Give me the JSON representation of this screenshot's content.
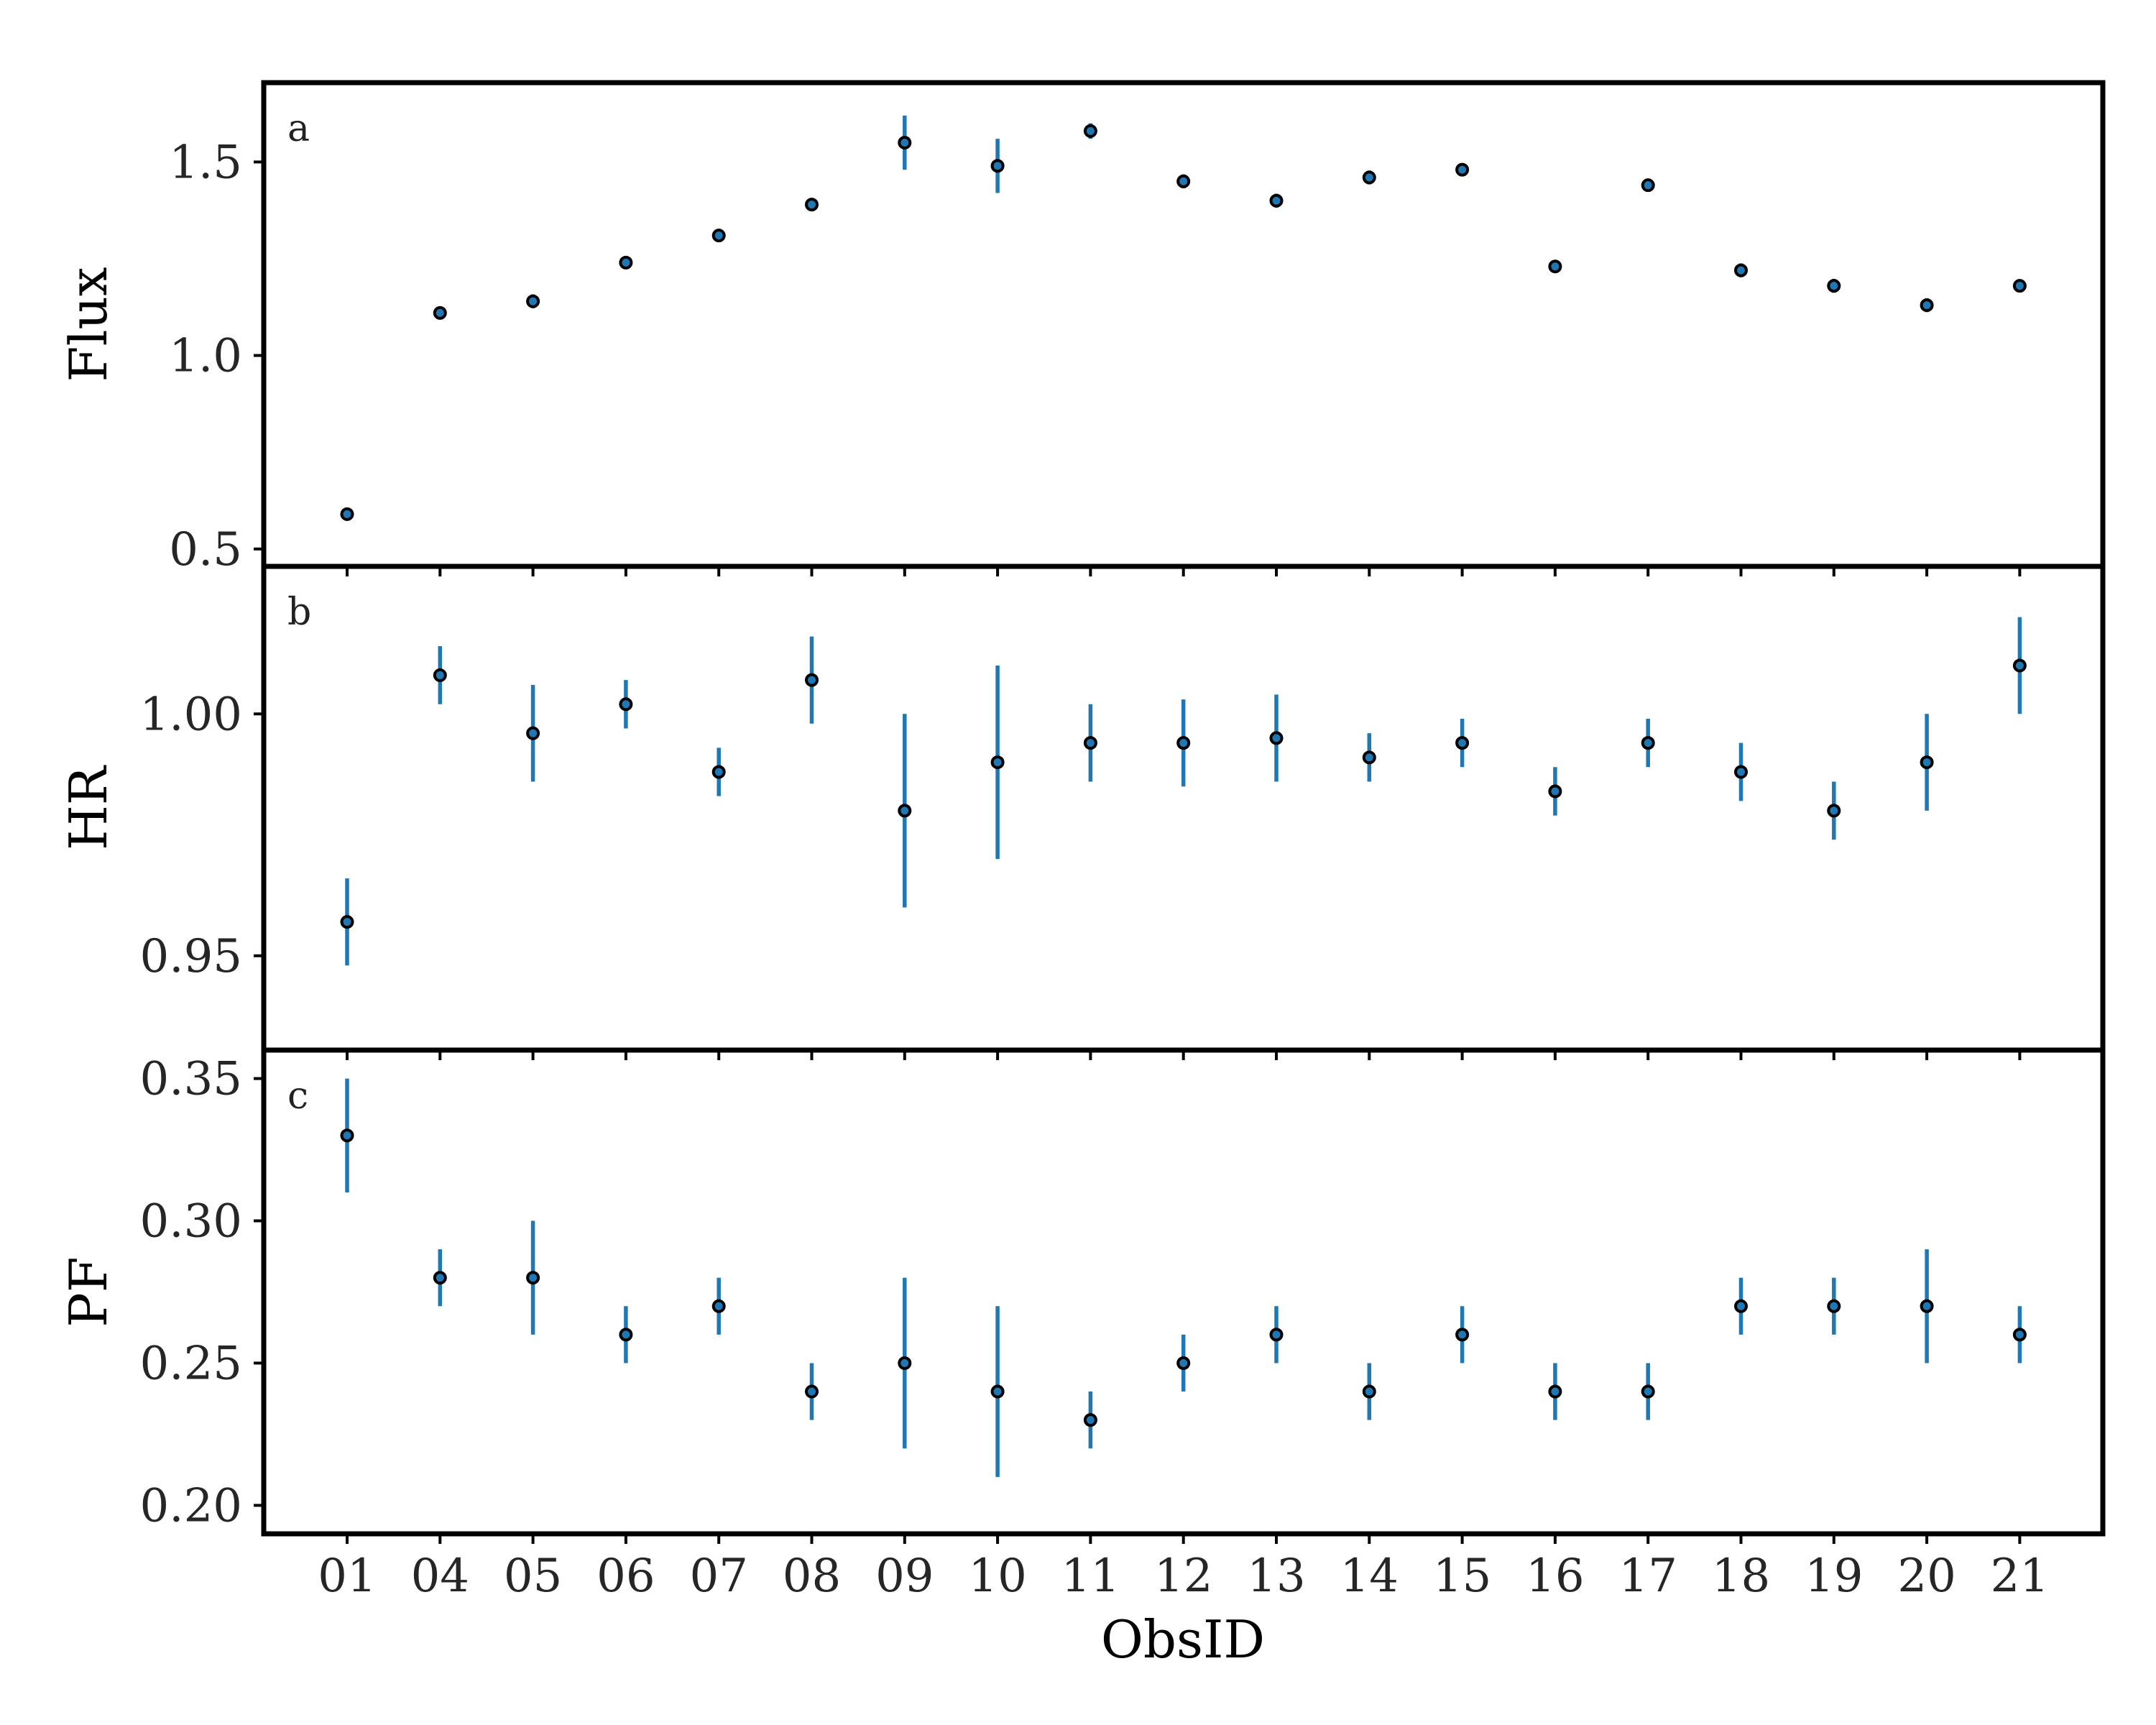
{
  "chart_data": {
    "type": "scatter",
    "xlabel": "ObsID",
    "categories": [
      "01",
      "04",
      "05",
      "06",
      "07",
      "08",
      "09",
      "10",
      "11",
      "12",
      "13",
      "14",
      "15",
      "16",
      "17",
      "18",
      "19",
      "20",
      "21"
    ],
    "colors": {
      "errorbar": "#1f77b4",
      "marker_fill": "#1f77b4",
      "marker_edge": "#000000"
    },
    "panels": [
      {
        "label": "a",
        "ylabel": "Flux",
        "ylim": [
          0.455,
          1.705
        ],
        "yticks": [
          0.5,
          1.0,
          1.5
        ],
        "ytick_labels": [
          "0.5",
          "1.0",
          "1.5"
        ],
        "values": [
          0.59,
          1.11,
          1.14,
          1.24,
          1.31,
          1.39,
          1.55,
          1.49,
          1.58,
          1.45,
          1.4,
          1.46,
          1.48,
          1.23,
          1.44,
          1.22,
          1.18,
          1.13,
          1.18
        ],
        "errors": [
          0.008,
          0.015,
          0.018,
          0.008,
          0.008,
          0.008,
          0.07,
          0.07,
          0.02,
          0.018,
          0.018,
          0.018,
          0.008,
          0.008,
          0.008,
          0.018,
          0.018,
          0.018,
          0.008
        ]
      },
      {
        "label": "b",
        "ylabel": "HR",
        "ylim": [
          0.9305,
          1.0305
        ],
        "yticks": [
          0.95,
          1.0
        ],
        "ytick_labels": [
          "0.95",
          "1.00"
        ],
        "values": [
          0.957,
          1.008,
          0.996,
          1.002,
          0.988,
          1.007,
          0.98,
          0.99,
          0.994,
          0.994,
          0.995,
          0.991,
          0.994,
          0.984,
          0.994,
          0.988,
          0.98,
          0.99,
          1.01
        ],
        "errors": [
          0.009,
          0.006,
          0.01,
          0.005,
          0.005,
          0.009,
          0.02,
          0.02,
          0.008,
          0.009,
          0.009,
          0.005,
          0.005,
          0.005,
          0.005,
          0.006,
          0.006,
          0.01,
          0.01
        ]
      },
      {
        "label": "c",
        "ylabel": "PF",
        "ylim": [
          0.19,
          0.36
        ],
        "yticks": [
          0.2,
          0.25,
          0.3,
          0.35
        ],
        "ytick_labels": [
          "0.20",
          "0.25",
          "0.30",
          "0.35"
        ],
        "values": [
          0.33,
          0.28,
          0.28,
          0.26,
          0.27,
          0.24,
          0.25,
          0.24,
          0.23,
          0.25,
          0.26,
          0.24,
          0.26,
          0.24,
          0.24,
          0.27,
          0.27,
          0.27,
          0.26
        ],
        "errors": [
          0.02,
          0.01,
          0.02,
          0.01,
          0.01,
          0.01,
          0.03,
          0.03,
          0.01,
          0.01,
          0.01,
          0.01,
          0.01,
          0.01,
          0.01,
          0.01,
          0.01,
          0.02,
          0.01
        ]
      }
    ]
  }
}
